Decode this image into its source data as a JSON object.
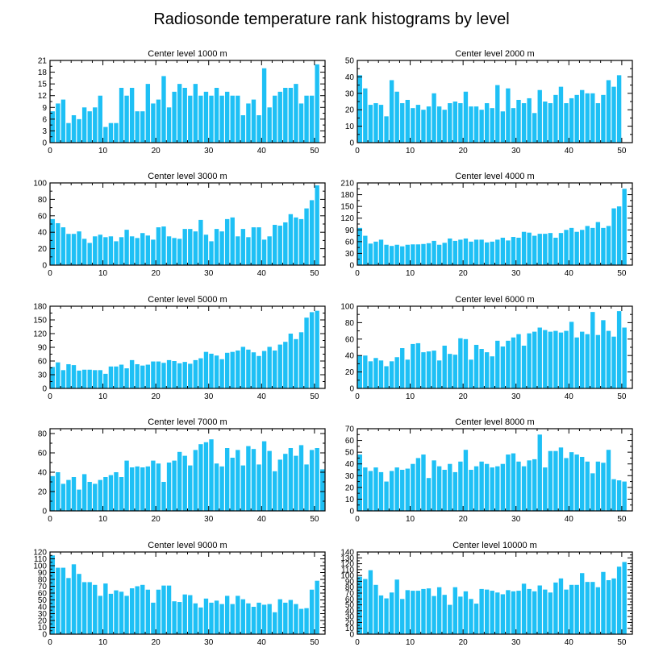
{
  "title": "Radiosonde temperature rank histograms by level",
  "colors": {
    "bar": "#1ec0f5",
    "axis": "#000000",
    "background": "#ffffff"
  },
  "chart_data": [
    {
      "type": "bar",
      "title": "Center level 1000 m",
      "xlim": [
        0,
        52
      ],
      "xticks": [
        0,
        10,
        20,
        30,
        40,
        50
      ],
      "ylim": [
        0,
        21
      ],
      "yticks": [
        0,
        3,
        6,
        9,
        12,
        15,
        18,
        21
      ],
      "values": [
        8,
        10,
        11,
        5,
        7,
        6,
        9,
        8,
        9,
        12,
        4,
        5,
        5,
        14,
        12,
        14,
        8,
        8,
        15,
        10,
        11,
        17,
        9,
        13,
        15,
        14,
        12,
        15,
        12,
        13,
        12,
        14,
        12,
        13,
        12,
        12,
        7,
        10,
        11,
        7,
        19,
        9,
        12,
        13,
        14,
        14,
        15,
        10,
        12,
        12,
        20
      ]
    },
    {
      "type": "bar",
      "title": "Center level 2000 m",
      "xlim": [
        0,
        52
      ],
      "xticks": [
        0,
        10,
        20,
        30,
        40,
        50
      ],
      "ylim": [
        0,
        50
      ],
      "yticks": [
        0,
        10,
        20,
        30,
        40,
        50
      ],
      "values": [
        41,
        33,
        23,
        24,
        23,
        16,
        38,
        31,
        24,
        26,
        21,
        23,
        20,
        22,
        30,
        22,
        20,
        24,
        25,
        24,
        31,
        22,
        22,
        20,
        24,
        21,
        35,
        19,
        33,
        21,
        26,
        24,
        27,
        18,
        32,
        25,
        24,
        29,
        34,
        24,
        27,
        29,
        32,
        30,
        30,
        24,
        29,
        38,
        34,
        41
      ]
    },
    {
      "type": "bar",
      "title": "Center level 3000 m",
      "xlim": [
        0,
        52
      ],
      "xticks": [
        0,
        10,
        20,
        30,
        40,
        50
      ],
      "ylim": [
        0,
        100
      ],
      "yticks": [
        0,
        20,
        40,
        60,
        80,
        100
      ],
      "values": [
        56,
        51,
        46,
        38,
        38,
        41,
        32,
        27,
        35,
        37,
        34,
        35,
        29,
        34,
        43,
        35,
        33,
        39,
        36,
        31,
        46,
        47,
        35,
        33,
        32,
        44,
        44,
        41,
        55,
        37,
        29,
        44,
        41,
        56,
        58,
        35,
        44,
        34,
        46,
        46,
        31,
        35,
        49,
        48,
        52,
        62,
        58,
        56,
        69,
        79,
        97
      ]
    },
    {
      "type": "bar",
      "title": "Center level 4000 m",
      "xlim": [
        0,
        52
      ],
      "xticks": [
        0,
        10,
        20,
        30,
        40,
        50
      ],
      "ylim": [
        0,
        210
      ],
      "yticks": [
        0,
        30,
        60,
        90,
        120,
        150,
        180,
        210
      ],
      "values": [
        95,
        75,
        55,
        60,
        65,
        52,
        49,
        52,
        48,
        52,
        53,
        53,
        54,
        56,
        62,
        52,
        57,
        68,
        62,
        65,
        68,
        60,
        65,
        65,
        58,
        60,
        65,
        70,
        63,
        72,
        70,
        85,
        83,
        75,
        80,
        80,
        82,
        70,
        82,
        90,
        95,
        85,
        90,
        100,
        95,
        110,
        95,
        100,
        145,
        150,
        195
      ]
    },
    {
      "type": "bar",
      "title": "Center level 5000 m",
      "xlim": [
        0,
        52
      ],
      "xticks": [
        0,
        10,
        20,
        30,
        40,
        50
      ],
      "ylim": [
        0,
        180
      ],
      "yticks": [
        0,
        30,
        60,
        90,
        120,
        150,
        180
      ],
      "values": [
        47,
        57,
        40,
        53,
        51,
        39,
        41,
        41,
        40,
        40,
        32,
        48,
        48,
        52,
        44,
        62,
        53,
        50,
        52,
        59,
        59,
        56,
        62,
        60,
        55,
        58,
        54,
        62,
        66,
        80,
        76,
        72,
        64,
        78,
        80,
        83,
        91,
        85,
        79,
        71,
        82,
        91,
        83,
        96,
        102,
        120,
        108,
        123,
        155,
        167,
        170
      ]
    },
    {
      "type": "bar",
      "title": "Center level 6000 m",
      "xlim": [
        0,
        52
      ],
      "xticks": [
        0,
        10,
        20,
        30,
        40,
        50
      ],
      "ylim": [
        0,
        100
      ],
      "yticks": [
        0,
        20,
        40,
        60,
        80,
        100
      ],
      "values": [
        40,
        40,
        33,
        37,
        34,
        27,
        33,
        38,
        49,
        35,
        54,
        55,
        44,
        45,
        46,
        34,
        52,
        42,
        41,
        61,
        60,
        35,
        53,
        48,
        44,
        39,
        58,
        51,
        58,
        62,
        66,
        52,
        67,
        69,
        74,
        71,
        69,
        70,
        68,
        70,
        81,
        62,
        69,
        66,
        93,
        65,
        83,
        70,
        63,
        94,
        74
      ]
    },
    {
      "type": "bar",
      "title": "Center level 7000 m",
      "xlim": [
        0,
        52
      ],
      "xticks": [
        0,
        10,
        20,
        30,
        40,
        50
      ],
      "ylim": [
        0,
        85
      ],
      "yticks": [
        0,
        20,
        40,
        60,
        80
      ],
      "values": [
        36,
        40,
        28,
        32,
        35,
        22,
        38,
        30,
        28,
        32,
        35,
        37,
        40,
        35,
        52,
        45,
        46,
        45,
        46,
        52,
        49,
        30,
        50,
        52,
        61,
        57,
        47,
        63,
        69,
        71,
        74,
        49,
        46,
        65,
        55,
        63,
        47,
        67,
        64,
        48,
        72,
        62,
        41,
        53,
        59,
        65,
        57,
        68,
        48,
        63,
        65,
        43
      ]
    },
    {
      "type": "bar",
      "title": "Center level 8000 m",
      "xlim": [
        0,
        52
      ],
      "xticks": [
        0,
        10,
        20,
        30,
        40,
        50
      ],
      "ylim": [
        0,
        70
      ],
      "yticks": [
        0,
        10,
        20,
        30,
        40,
        50,
        60,
        70
      ],
      "values": [
        48,
        37,
        34,
        37,
        33,
        25,
        34,
        37,
        35,
        36,
        40,
        45,
        48,
        28,
        43,
        38,
        35,
        40,
        33,
        42,
        52,
        35,
        38,
        42,
        40,
        37,
        38,
        40,
        48,
        49,
        42,
        38,
        43,
        44,
        65,
        37,
        51,
        51,
        54,
        45,
        50,
        48,
        46,
        42,
        32,
        42,
        41,
        52,
        27,
        26,
        25
      ]
    },
    {
      "type": "bar",
      "title": "Center level 9000 m",
      "xlim": [
        0,
        52
      ],
      "xticks": [
        0,
        10,
        20,
        30,
        40,
        50
      ],
      "ylim": [
        0,
        120
      ],
      "yticks": [
        0,
        10,
        20,
        30,
        40,
        50,
        60,
        70,
        80,
        90,
        100,
        110,
        120
      ],
      "values": [
        115,
        97,
        97,
        82,
        102,
        88,
        76,
        76,
        72,
        56,
        74,
        59,
        64,
        62,
        56,
        67,
        70,
        72,
        65,
        46,
        65,
        71,
        71,
        48,
        47,
        58,
        57,
        45,
        39,
        52,
        46,
        49,
        44,
        56,
        44,
        56,
        51,
        45,
        40,
        46,
        43,
        44,
        32,
        51,
        46,
        50,
        44,
        37,
        38,
        65,
        78
      ]
    },
    {
      "type": "bar",
      "title": "Center level 10000 m",
      "xlim": [
        0,
        52
      ],
      "xticks": [
        0,
        10,
        20,
        30,
        40,
        50
      ],
      "ylim": [
        0,
        140
      ],
      "yticks": [
        0,
        10,
        20,
        30,
        40,
        50,
        60,
        70,
        80,
        90,
        100,
        110,
        120,
        130,
        140
      ],
      "values": [
        98,
        94,
        109,
        84,
        66,
        61,
        71,
        93,
        60,
        75,
        74,
        74,
        77,
        78,
        65,
        80,
        67,
        50,
        80,
        64,
        73,
        60,
        52,
        77,
        76,
        74,
        71,
        68,
        75,
        73,
        74,
        86,
        77,
        73,
        83,
        76,
        71,
        88,
        95,
        76,
        84,
        84,
        104,
        89,
        89,
        80,
        106,
        92,
        95,
        115,
        123
      ]
    }
  ]
}
